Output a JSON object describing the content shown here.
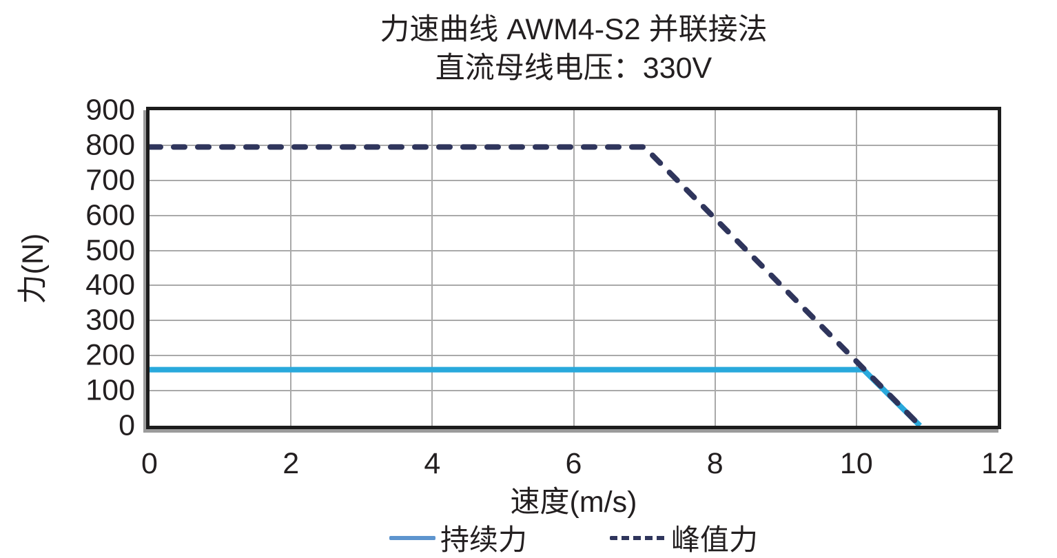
{
  "chart_data": {
    "type": "line",
    "title": "力速曲线 AWM4-S2 并联接法",
    "subtitle": "直流母线电压：330V",
    "xlabel": "速度(m/s)",
    "ylabel": "力(N)",
    "xlim": [
      0,
      12
    ],
    "ylim": [
      0,
      900
    ],
    "xticks": [
      0,
      2,
      4,
      6,
      8,
      10,
      12
    ],
    "yticks": [
      0,
      100,
      200,
      300,
      400,
      500,
      600,
      700,
      800,
      900
    ],
    "grid": true,
    "legend_position": "bottom",
    "series": [
      {
        "name": "持续力",
        "style": "solid",
        "color": "#29A9DC",
        "legend_swatch_color": "#5D94CE",
        "points": [
          [
            0,
            160
          ],
          [
            10.1,
            160
          ],
          [
            10.9,
            0
          ]
        ]
      },
      {
        "name": "峰值力",
        "style": "dashed",
        "color": "#2F355C",
        "legend_swatch_color": "#2F355C",
        "points": [
          [
            0,
            795
          ],
          [
            7,
            795
          ],
          [
            10.9,
            0
          ]
        ]
      }
    ],
    "colors": {
      "text": "#231F20",
      "grid": "#A9A9A9",
      "border": "#1C1C1C",
      "border_shadow": "#9B9B9B",
      "background": "#FFFFFF"
    }
  }
}
